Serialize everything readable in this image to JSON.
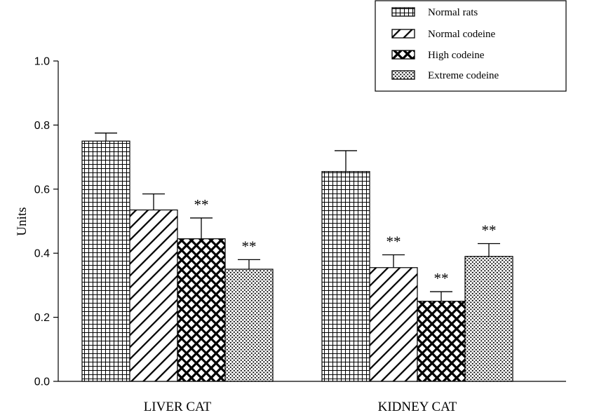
{
  "chart_data": {
    "type": "bar",
    "title": "",
    "xlabel": "",
    "ylabel": "Units",
    "ylim": [
      0,
      1.0
    ],
    "yticks": [
      "0.0",
      "0.2",
      "0.4",
      "0.6",
      "0.8",
      "1.0"
    ],
    "grid": false,
    "legend_position": "top-right",
    "categories": [
      "LIVER CAT",
      "KIDNEY CAT"
    ],
    "series": [
      {
        "name": "Normal rats",
        "pattern": "grid",
        "values": [
          0.75,
          0.655
        ],
        "errors": [
          0.025,
          0.065
        ],
        "significance": [
          "",
          ""
        ]
      },
      {
        "name": "Normal codeine",
        "pattern": "diagonal",
        "values": [
          0.535,
          0.355
        ],
        "errors": [
          0.05,
          0.04
        ],
        "significance": [
          "",
          "**"
        ]
      },
      {
        "name": "High codeine",
        "pattern": "crosshatch",
        "values": [
          0.445,
          0.25
        ],
        "errors": [
          0.065,
          0.03
        ],
        "significance": [
          "**",
          "**"
        ]
      },
      {
        "name": "Extreme codeine",
        "pattern": "dots",
        "values": [
          0.35,
          0.39
        ],
        "errors": [
          0.03,
          0.04
        ],
        "significance": [
          "**",
          "**"
        ]
      }
    ]
  }
}
